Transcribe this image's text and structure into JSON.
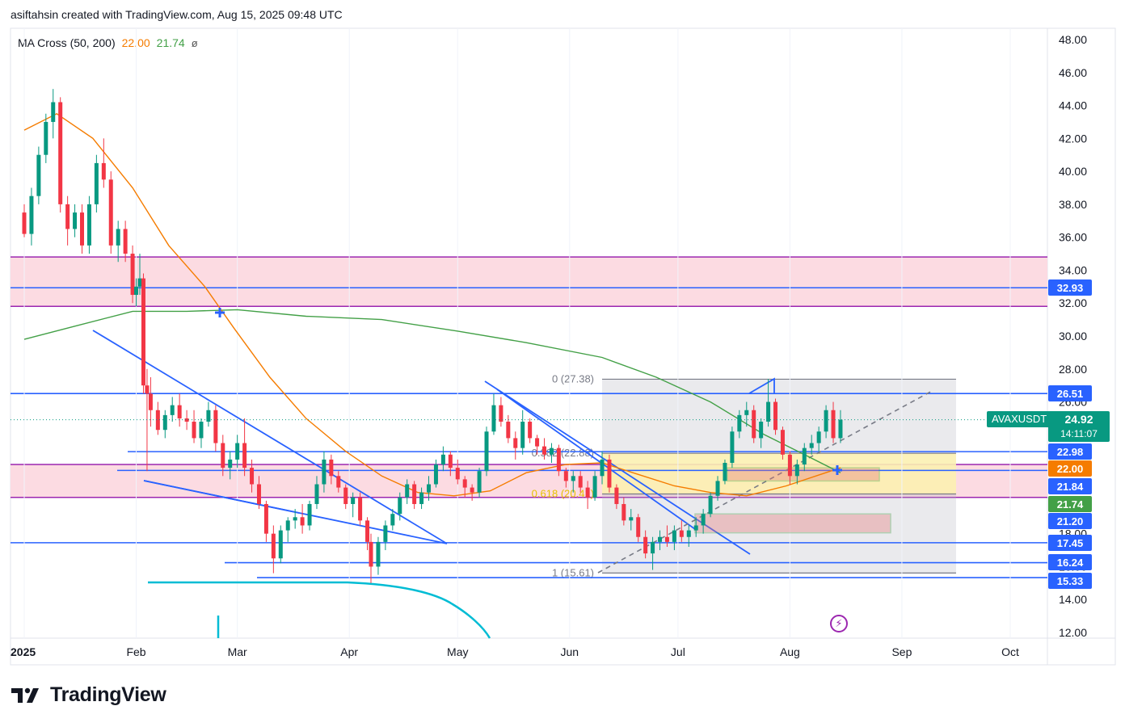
{
  "header": {
    "text": "asiftahsin created with TradingView.com, Aug 15, 2025 09:48 UTC"
  },
  "legend": {
    "name": "MA Cross (50, 200)",
    "ma50_value": "22.00",
    "ma200_value": "21.74",
    "symbol": "ø"
  },
  "brand": {
    "name": "TradingView"
  },
  "ticker": {
    "symbol": "AVAXUSDT",
    "last_price": "24.92",
    "countdown": "14:11:07"
  },
  "colors": {
    "up": "#089981",
    "down": "#f23645",
    "ma50": "#f57c00",
    "ma200": "#43a047",
    "level": "#2962ff",
    "zone_fill": "#f8bbd0",
    "zone_border": "#9c27b0"
  },
  "chart_data": {
    "type": "candlestick",
    "symbol": "AVAXUSDT",
    "y_axis": {
      "min": 12,
      "max": 48,
      "ticks": [
        "48.00",
        "46.00",
        "44.00",
        "42.00",
        "40.00",
        "38.00",
        "36.00",
        "34.00",
        "32.00",
        "30.00",
        "28.00",
        "26.00",
        "24.00",
        "22.00",
        "20.00",
        "18.00",
        "16.00",
        "14.00",
        "12.00"
      ]
    },
    "x_axis": {
      "labels": [
        "2025",
        "Feb",
        "Mar",
        "Apr",
        "May",
        "Jun",
        "Jul",
        "Aug",
        "Sep",
        "Oct"
      ]
    },
    "key_levels": [
      32.93,
      26.51,
      22.98,
      21.84,
      17.45,
      16.24,
      15.33
    ],
    "axis_badges": [
      {
        "value": "32.93",
        "color": "#2962ff"
      },
      {
        "value": "26.51",
        "color": "#2962ff"
      },
      {
        "value": "22.98",
        "color": "#2962ff"
      },
      {
        "value": "22.00",
        "color": "#f57c00"
      },
      {
        "value": "21.84",
        "color": "#2962ff"
      },
      {
        "value": "21.74",
        "color": "#43a047"
      },
      {
        "value": "21.20",
        "color": "#2962ff"
      },
      {
        "value": "17.45",
        "color": "#2962ff"
      },
      {
        "value": "16.24",
        "color": "#2962ff"
      },
      {
        "value": "15.33",
        "color": "#2962ff"
      }
    ],
    "zones": [
      {
        "from": 31.8,
        "to": 34.8
      },
      {
        "from": 20.2,
        "to": 22.2
      }
    ],
    "fibonacci": {
      "labels": [
        "0 (27.38)",
        "0.382 (22.88)",
        "0.618 (20.41)",
        "1 (15.61)"
      ],
      "levels": [
        27.38,
        22.88,
        20.41,
        15.61
      ]
    },
    "ma50": [
      [
        "2025-01-01",
        42.5
      ],
      [
        "2025-01-10",
        43.5
      ],
      [
        "2025-01-20",
        42.0
      ],
      [
        "2025-01-31",
        39.0
      ],
      [
        "2025-02-10",
        35.5
      ],
      [
        "2025-02-20",
        33.0
      ],
      [
        "2025-02-28",
        30.5
      ],
      [
        "2025-03-10",
        27.5
      ],
      [
        "2025-03-20",
        25.0
      ],
      [
        "2025-03-31",
        23.0
      ],
      [
        "2025-04-10",
        21.5
      ],
      [
        "2025-04-20",
        20.5
      ],
      [
        "2025-04-30",
        20.3
      ],
      [
        "2025-05-10",
        20.6
      ],
      [
        "2025-05-20",
        21.7
      ],
      [
        "2025-05-31",
        22.2
      ],
      [
        "2025-06-10",
        22.3
      ],
      [
        "2025-06-20",
        21.6
      ],
      [
        "2025-06-30",
        20.9
      ],
      [
        "2025-07-10",
        20.5
      ],
      [
        "2025-07-20",
        20.3
      ],
      [
        "2025-07-31",
        20.9
      ],
      [
        "2025-08-15",
        22.0
      ]
    ],
    "ma200": [
      [
        "2025-01-01",
        29.8
      ],
      [
        "2025-01-15",
        30.6
      ],
      [
        "2025-01-31",
        31.5
      ],
      [
        "2025-02-15",
        31.5
      ],
      [
        "2025-03-01",
        31.6
      ],
      [
        "2025-03-20",
        31.2
      ],
      [
        "2025-04-10",
        31.0
      ],
      [
        "2025-05-01",
        30.3
      ],
      [
        "2025-05-20",
        29.6
      ],
      [
        "2025-06-10",
        28.7
      ],
      [
        "2025-06-25",
        27.5
      ],
      [
        "2025-07-10",
        26.0
      ],
      [
        "2025-07-25",
        24.0
      ],
      [
        "2025-08-05",
        22.8
      ],
      [
        "2025-08-15",
        21.7
      ]
    ],
    "ohlc": [
      [
        "2025-01-01",
        37.5,
        38.0,
        36.0,
        36.2
      ],
      [
        "2025-01-03",
        36.2,
        39.0,
        35.5,
        38.5
      ],
      [
        "2025-01-05",
        38.5,
        41.5,
        38.0,
        41.0
      ],
      [
        "2025-01-07",
        41.0,
        43.5,
        40.5,
        43.0
      ],
      [
        "2025-01-09",
        43.0,
        45.0,
        42.0,
        44.2
      ],
      [
        "2025-01-11",
        44.2,
        44.5,
        37.5,
        38.0
      ],
      [
        "2025-01-13",
        38.0,
        38.5,
        35.5,
        36.5
      ],
      [
        "2025-01-15",
        36.5,
        38.0,
        36.0,
        37.5
      ],
      [
        "2025-01-17",
        37.5,
        38.0,
        35.0,
        35.5
      ],
      [
        "2025-01-19",
        35.5,
        38.5,
        35.0,
        38.0
      ],
      [
        "2025-01-21",
        38.0,
        41.0,
        37.5,
        40.5
      ],
      [
        "2025-01-23",
        40.5,
        42.0,
        39.0,
        39.5
      ],
      [
        "2025-01-25",
        39.5,
        40.0,
        35.0,
        35.5
      ],
      [
        "2025-01-27",
        35.5,
        37.0,
        34.5,
        36.5
      ],
      [
        "2025-01-29",
        36.5,
        37.0,
        34.5,
        35.0
      ],
      [
        "2025-01-31",
        35.0,
        35.5,
        32.0,
        32.5
      ],
      [
        "2025-02-01",
        32.5,
        33.5,
        31.8,
        33.0
      ],
      [
        "2025-02-02",
        33.0,
        35.0,
        32.5,
        33.5
      ],
      [
        "2025-02-03",
        33.5,
        33.8,
        26.5,
        27.0
      ],
      [
        "2025-02-04",
        27.0,
        28.0,
        21.8,
        26.5
      ],
      [
        "2025-02-05",
        26.5,
        27.5,
        24.5,
        25.5
      ],
      [
        "2025-02-07",
        25.5,
        26.0,
        24.0,
        24.3
      ],
      [
        "2025-02-09",
        24.3,
        25.5,
        23.8,
        25.2
      ],
      [
        "2025-02-11",
        25.2,
        26.3,
        24.8,
        25.8
      ],
      [
        "2025-02-13",
        25.8,
        26.5,
        24.5,
        25.0
      ],
      [
        "2025-02-15",
        25.0,
        25.5,
        24.3,
        24.8
      ],
      [
        "2025-02-17",
        24.8,
        25.5,
        23.5,
        23.8
      ],
      [
        "2025-02-19",
        23.8,
        25.0,
        23.2,
        24.8
      ],
      [
        "2025-02-21",
        24.8,
        26.0,
        24.5,
        25.5
      ],
      [
        "2025-02-23",
        25.5,
        25.8,
        23.0,
        23.5
      ],
      [
        "2025-02-25",
        23.5,
        24.0,
        21.5,
        22.0
      ],
      [
        "2025-02-27",
        22.0,
        23.0,
        21.3,
        22.5
      ],
      [
        "2025-03-01",
        22.5,
        24.0,
        22.0,
        23.5
      ],
      [
        "2025-03-03",
        23.5,
        25.0,
        21.5,
        22.0
      ],
      [
        "2025-03-05",
        22.0,
        22.5,
        20.5,
        21.0
      ],
      [
        "2025-03-07",
        21.0,
        21.5,
        19.5,
        19.8
      ],
      [
        "2025-03-09",
        19.8,
        20.0,
        17.5,
        18.0
      ],
      [
        "2025-03-11",
        18.0,
        18.5,
        15.6,
        16.5
      ],
      [
        "2025-03-13",
        16.5,
        18.5,
        16.2,
        18.2
      ],
      [
        "2025-03-15",
        18.2,
        19.0,
        17.5,
        18.8
      ],
      [
        "2025-03-17",
        18.8,
        19.5,
        18.3,
        19.0
      ],
      [
        "2025-03-19",
        19.0,
        19.8,
        18.0,
        18.5
      ],
      [
        "2025-03-21",
        18.5,
        20.0,
        18.2,
        19.8
      ],
      [
        "2025-03-23",
        19.8,
        21.5,
        19.5,
        21.0
      ],
      [
        "2025-03-25",
        21.0,
        23.0,
        20.5,
        22.5
      ],
      [
        "2025-03-27",
        22.5,
        22.8,
        21.0,
        21.5
      ],
      [
        "2025-03-29",
        21.5,
        21.8,
        20.5,
        20.8
      ],
      [
        "2025-03-31",
        20.8,
        21.0,
        19.5,
        19.8
      ],
      [
        "2025-04-02",
        19.8,
        20.5,
        19.0,
        20.2
      ],
      [
        "2025-04-04",
        20.2,
        20.5,
        18.5,
        18.8
      ],
      [
        "2025-04-06",
        18.8,
        19.0,
        17.0,
        17.5
      ],
      [
        "2025-04-07",
        17.5,
        18.0,
        15.0,
        16.0
      ],
      [
        "2025-04-09",
        16.0,
        17.8,
        15.5,
        17.5
      ],
      [
        "2025-04-11",
        17.5,
        18.8,
        17.0,
        18.5
      ],
      [
        "2025-04-13",
        18.5,
        19.5,
        18.2,
        19.2
      ],
      [
        "2025-04-15",
        19.2,
        20.5,
        18.8,
        20.2
      ],
      [
        "2025-04-17",
        20.2,
        21.3,
        19.8,
        21.0
      ],
      [
        "2025-04-19",
        21.0,
        21.2,
        19.5,
        19.8
      ],
      [
        "2025-04-21",
        19.8,
        20.8,
        19.5,
        20.5
      ],
      [
        "2025-04-23",
        20.5,
        21.5,
        20.0,
        21.0
      ],
      [
        "2025-04-25",
        21.0,
        22.5,
        20.8,
        22.2
      ],
      [
        "2025-04-27",
        22.2,
        23.3,
        21.8,
        22.8
      ],
      [
        "2025-04-29",
        22.8,
        23.0,
        21.5,
        22.0
      ],
      [
        "2025-05-01",
        22.0,
        22.5,
        21.0,
        21.3
      ],
      [
        "2025-05-03",
        21.3,
        21.5,
        20.2,
        20.8
      ],
      [
        "2025-05-05",
        20.8,
        21.0,
        20.0,
        20.5
      ],
      [
        "2025-05-07",
        20.5,
        22.0,
        20.2,
        21.8
      ],
      [
        "2025-05-09",
        21.8,
        24.5,
        21.5,
        24.2
      ],
      [
        "2025-05-11",
        24.2,
        26.5,
        24.0,
        25.8
      ],
      [
        "2025-05-13",
        25.8,
        26.3,
        24.5,
        24.8
      ],
      [
        "2025-05-15",
        24.8,
        25.2,
        23.5,
        23.8
      ],
      [
        "2025-05-17",
        23.8,
        24.2,
        22.5,
        23.2
      ],
      [
        "2025-05-19",
        23.2,
        25.5,
        22.8,
        24.8
      ],
      [
        "2025-05-21",
        24.8,
        25.0,
        23.5,
        23.8
      ],
      [
        "2025-05-23",
        23.8,
        24.0,
        22.8,
        23.3
      ],
      [
        "2025-05-25",
        23.3,
        23.8,
        22.5,
        22.8
      ],
      [
        "2025-05-27",
        22.8,
        23.5,
        22.3,
        23.2
      ],
      [
        "2025-05-29",
        23.2,
        23.4,
        21.5,
        21.8
      ],
      [
        "2025-05-31",
        21.8,
        22.0,
        20.8,
        21.2
      ],
      [
        "2025-06-02",
        21.2,
        21.8,
        20.5,
        21.5
      ],
      [
        "2025-06-04",
        21.5,
        21.8,
        20.5,
        20.8
      ],
      [
        "2025-06-06",
        20.8,
        21.2,
        19.5,
        20.2
      ],
      [
        "2025-06-08",
        20.2,
        21.8,
        20.0,
        21.5
      ],
      [
        "2025-06-10",
        21.5,
        23.0,
        21.0,
        22.5
      ],
      [
        "2025-06-12",
        22.5,
        22.8,
        20.5,
        20.8
      ],
      [
        "2025-06-14",
        20.8,
        21.0,
        19.5,
        19.8
      ],
      [
        "2025-06-16",
        19.8,
        20.2,
        18.5,
        18.8
      ],
      [
        "2025-06-18",
        18.8,
        19.5,
        18.2,
        19.0
      ],
      [
        "2025-06-20",
        19.0,
        19.2,
        17.5,
        17.8
      ],
      [
        "2025-06-22",
        17.8,
        18.2,
        16.5,
        16.8
      ],
      [
        "2025-06-24",
        16.8,
        17.8,
        15.8,
        17.5
      ],
      [
        "2025-06-26",
        17.5,
        18.2,
        17.0,
        17.8
      ],
      [
        "2025-06-28",
        17.8,
        18.5,
        17.2,
        17.5
      ],
      [
        "2025-06-30",
        17.5,
        18.5,
        17.0,
        18.2
      ],
      [
        "2025-07-02",
        18.2,
        18.8,
        17.5,
        17.8
      ],
      [
        "2025-07-04",
        17.8,
        18.5,
        17.2,
        18.2
      ],
      [
        "2025-07-06",
        18.2,
        19.0,
        17.8,
        18.5
      ],
      [
        "2025-07-08",
        18.5,
        19.5,
        18.0,
        19.2
      ],
      [
        "2025-07-10",
        19.2,
        20.5,
        19.0,
        20.3
      ],
      [
        "2025-07-12",
        20.3,
        21.5,
        20.0,
        21.2
      ],
      [
        "2025-07-14",
        21.2,
        22.5,
        21.0,
        22.3
      ],
      [
        "2025-07-16",
        22.3,
        24.5,
        22.0,
        24.2
      ],
      [
        "2025-07-18",
        24.2,
        25.5,
        23.8,
        25.2
      ],
      [
        "2025-07-20",
        25.2,
        26.0,
        24.5,
        25.5
      ],
      [
        "2025-07-22",
        25.5,
        25.8,
        23.5,
        23.8
      ],
      [
        "2025-07-24",
        23.8,
        25.0,
        23.2,
        24.8
      ],
      [
        "2025-07-26",
        24.8,
        27.4,
        24.5,
        26.0
      ],
      [
        "2025-07-28",
        26.0,
        26.2,
        24.0,
        24.3
      ],
      [
        "2025-07-30",
        24.3,
        24.5,
        22.5,
        22.8
      ],
      [
        "2025-08-01",
        22.8,
        23.0,
        21.0,
        21.5
      ],
      [
        "2025-08-03",
        21.5,
        22.5,
        21.0,
        22.2
      ],
      [
        "2025-08-05",
        22.2,
        23.5,
        21.8,
        23.2
      ],
      [
        "2025-08-07",
        23.2,
        24.0,
        22.8,
        23.5
      ],
      [
        "2025-08-09",
        23.5,
        24.5,
        23.0,
        24.2
      ],
      [
        "2025-08-11",
        24.2,
        25.8,
        23.8,
        25.5
      ],
      [
        "2025-08-13",
        25.5,
        26.0,
        23.5,
        23.8
      ],
      [
        "2025-08-15",
        23.8,
        25.5,
        23.5,
        24.92
      ]
    ]
  }
}
